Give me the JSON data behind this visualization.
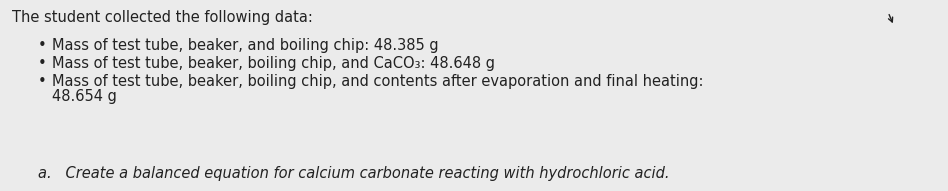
{
  "background_color": "#ebebeb",
  "title_text": "The student collected the following data:",
  "title_fontsize": 10.5,
  "title_fontweight": "normal",
  "bullet1": "Mass of test tube, beaker, and boiling chip: 48.385 g",
  "bullet2": "Mass of test tube, beaker, boiling chip, and CaCO₃: 48.648 g",
  "bullet3": "Mass of test tube, beaker, boiling chip, and contents after evaporation and final heating:",
  "bullet3b": "48.654 g",
  "question": "a.   Create a balanced equation for calcium carbonate reacting with hydrochloric acid.",
  "bullet_char": "•",
  "fontsize": 10.5,
  "text_color": "#222222",
  "fig_width": 9.48,
  "fig_height": 1.91,
  "dpi": 100
}
